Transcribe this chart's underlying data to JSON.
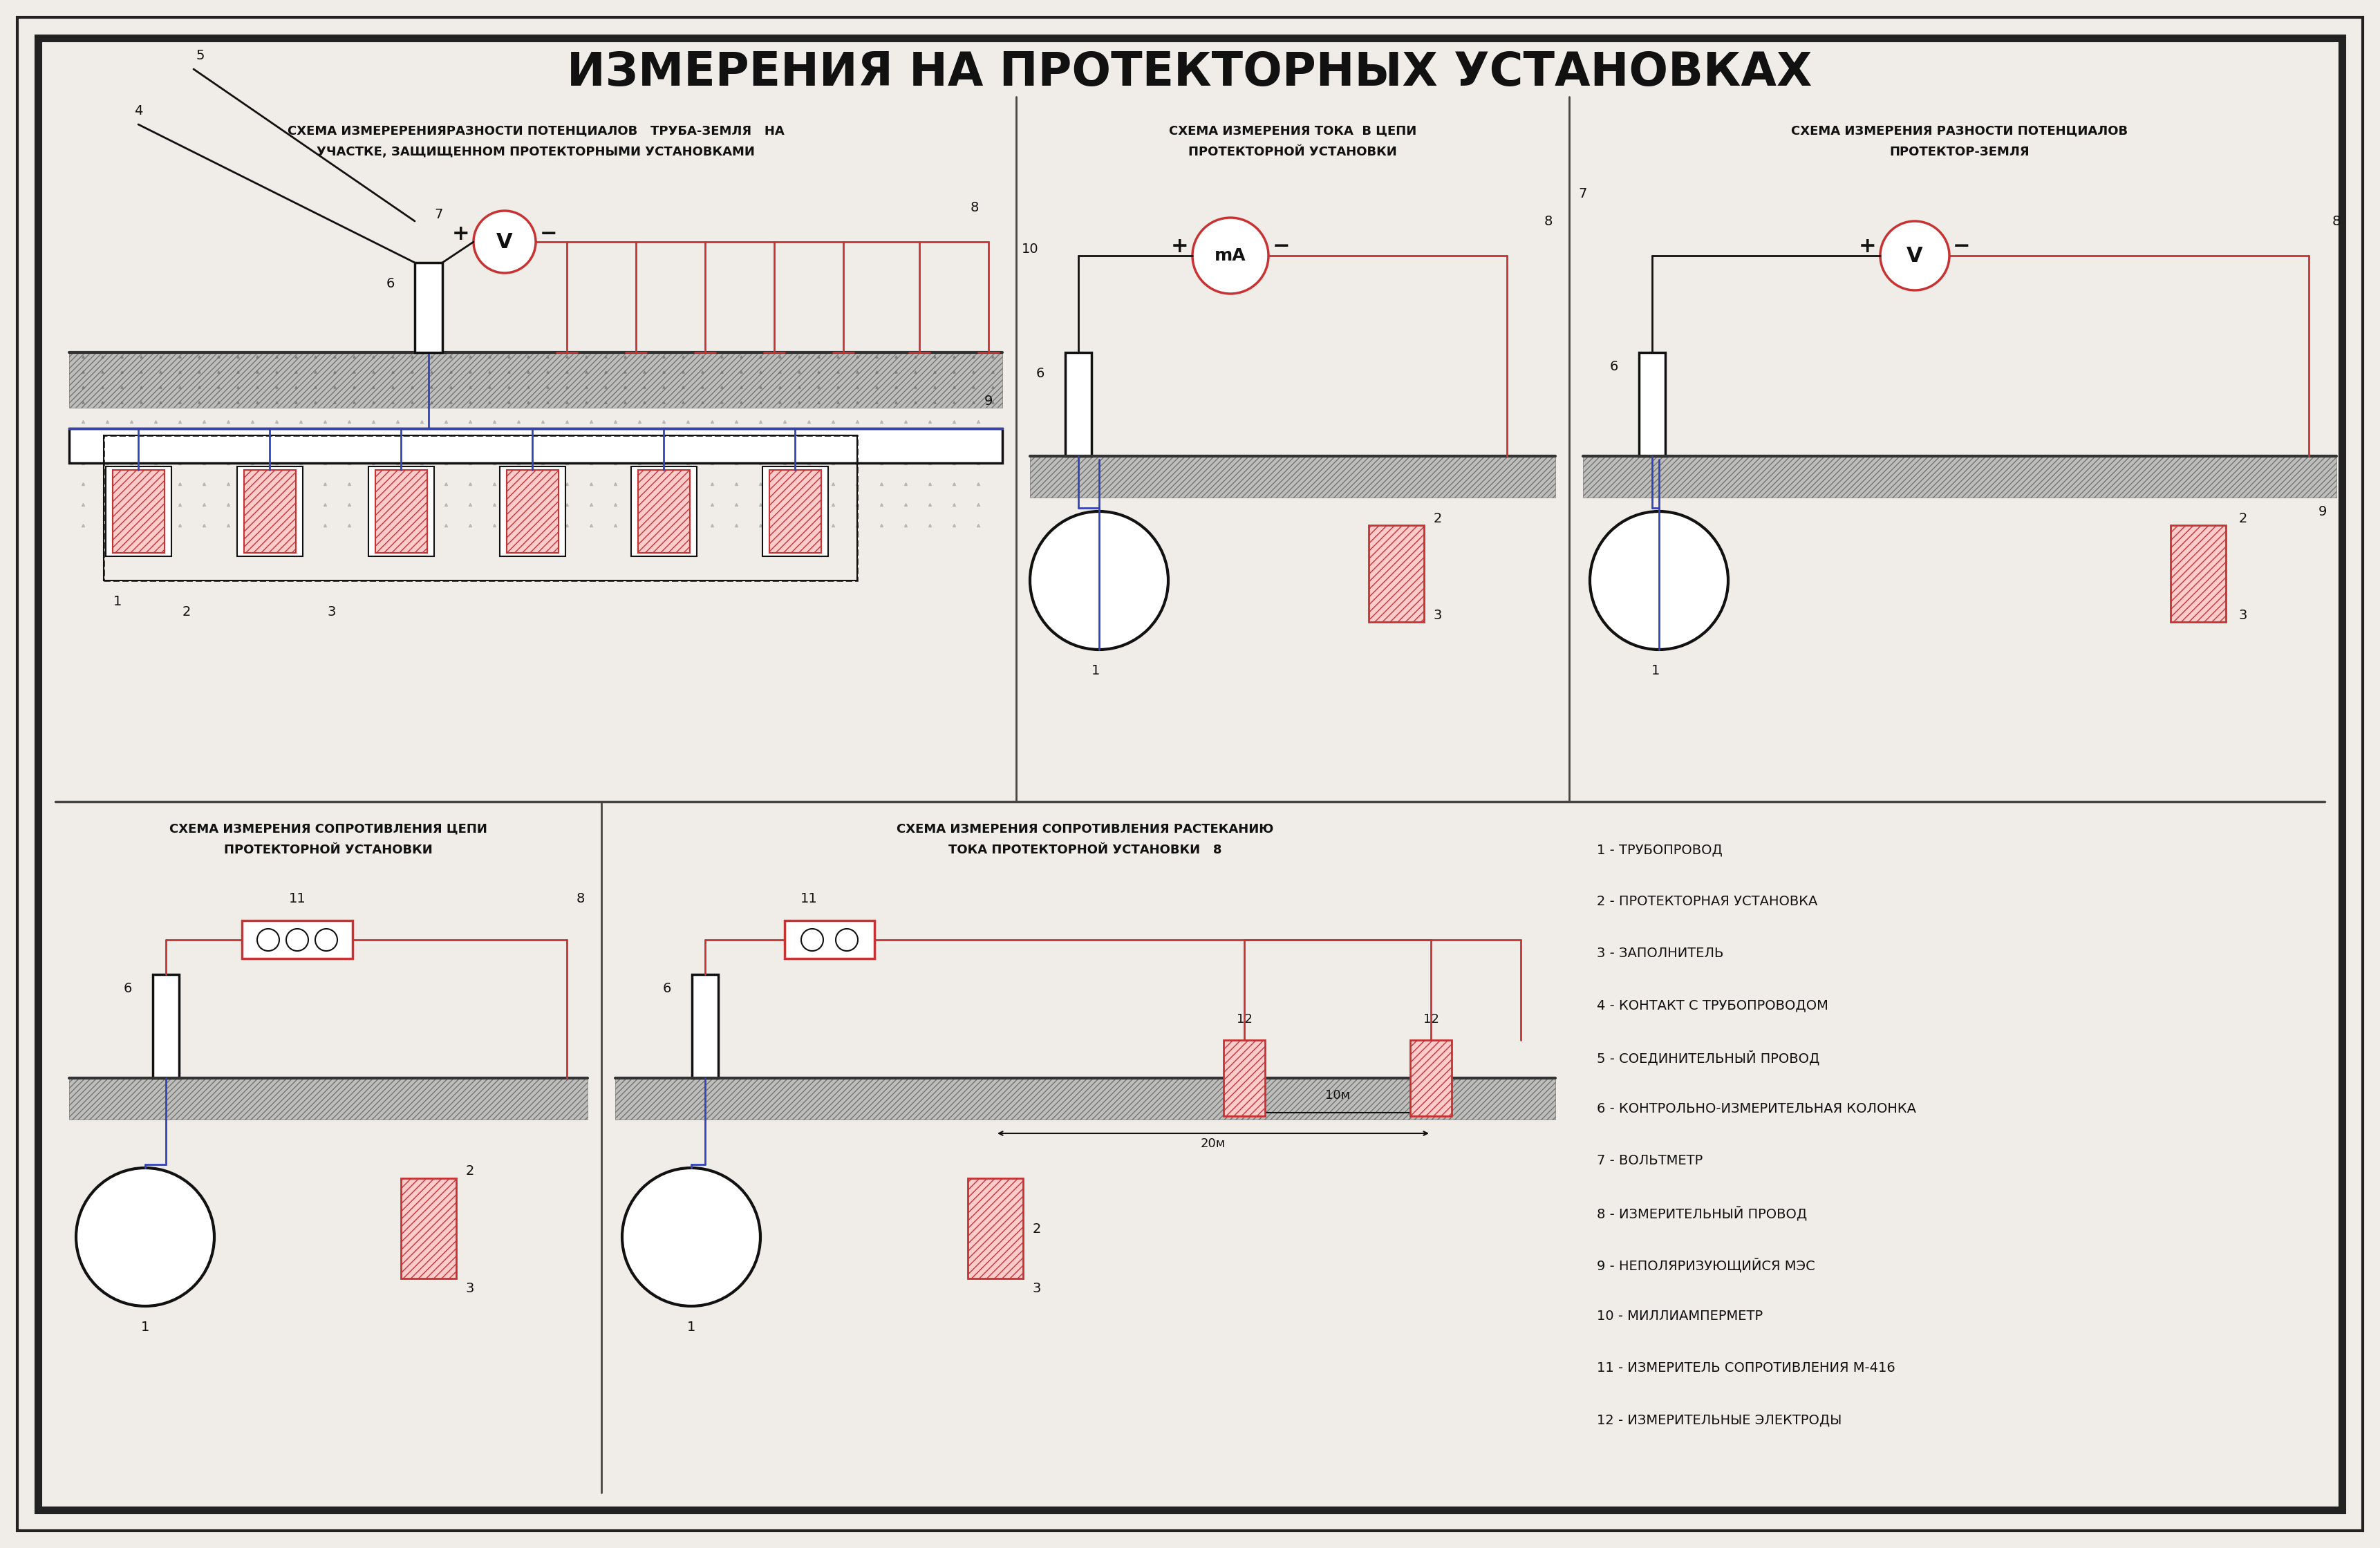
{
  "title": "ИЗМЕРЕНИЯ НА ПРОТЕКТОРНЫХ УСТАНОВКАХ",
  "bg_color": "#f0ede8",
  "border_color": "#222222",
  "red_color": "#c83232",
  "blue_color": "#3344bb",
  "dark_color": "#111111",
  "legend_items": [
    "1 - ТРУБОПРОВОД",
    "2 - ПРОТЕКТОРНАЯ УСТАНОВКА",
    "3 - ЗАПОЛНИТЕЛЬ",
    "4 - КОНТАКТ С ТРУБОПРОВОДОМ",
    "5 - СОЕДИНИТЕЛЬНЫЙ ПРОВОД",
    "6 - КОНТРОЛЬНО-ИЗМЕРИТЕЛЬНАЯ КОЛОНКА",
    "7 - ВОЛЬТМЕТР",
    "8 - ИЗМЕРИТЕЛЬНЫЙ ПРОВОД",
    "9 - НЕПОЛЯРИЗУЮЩИЙСЯ МЭС",
    "10 - МИЛЛИАМПЕРМЕТР",
    "11 - ИЗМЕРИТЕЛЬ СОПРОТИВЛЕНИЯ М-416",
    "12 - ИЗМЕРИТЕЛЬНЫЕ ЭЛЕКТРОДЫ"
  ],
  "scheme1_title": "СХЕМА ИЗМЕРЕРЕНИЯРАЗНОСТИ ПОТЕНЦИАЛОВ   ТРУБА-ЗЕМЛЯ   НА\n         УЧАСТКЕ, ЗАЩИЩЕННОМ ПРОТЕКТОРНЫМИ УСТАНОВКАМИ",
  "scheme2_title": "СХЕМА ИЗМЕРЕНИЯ ТОКА  В ЦЕПИ\n   ПРОТЕКТОРНОЙ УСТАНОВКИ",
  "scheme3_title": "СХЕМА ИЗМЕРЕНИЯ РАЗНОСТИ ПОТЕНЦИАЛОВ\n           ПРОТЕКТОР-ЗЕМЛЯ",
  "scheme4_title": "СХЕМА ИЗМЕРЕНИЯ СОПРОТИВЛЕНИЯ ЦЕПИ\n      ПРОТЕКТОРНОЙ УСТАНОВКИ",
  "scheme5_title": "СХЕМА ИЗМЕРЕНИЯ СОПРОТИВЛЕНИЯ РАСТЕКАНИЮ\n    ТОКА ПРОТЕКТОРНОЙ УСТАНОВКИ   8"
}
